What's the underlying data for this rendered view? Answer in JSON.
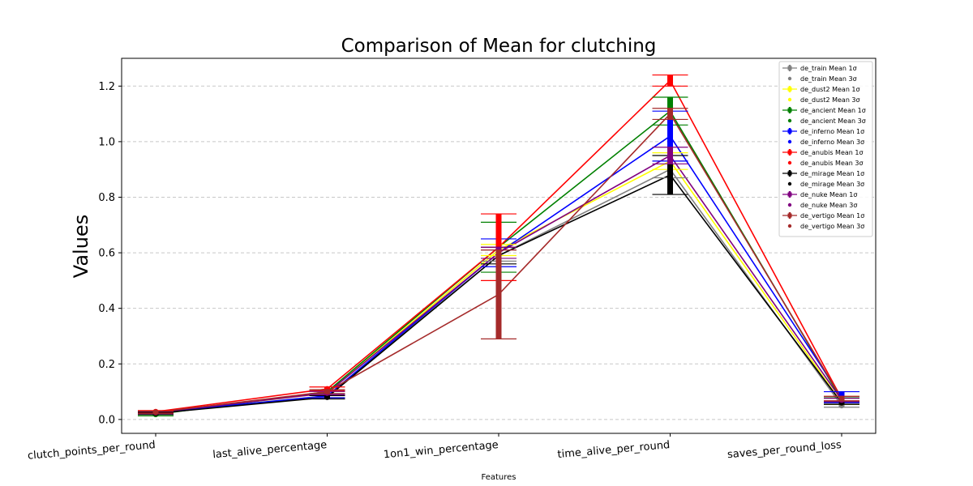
{
  "chart_data": {
    "type": "line",
    "title": "Comparison of Mean for clutching",
    "xlabel": "Features",
    "ylabel": "Values",
    "categories": [
      "clutch_points_per_round",
      "last_alive_percentage",
      "1on1_win_percentage",
      "time_alive_per_round",
      "saves_per_round_loss"
    ],
    "ylim": [
      -0.05,
      1.3
    ],
    "yticks": [
      0.0,
      0.2,
      0.4,
      0.6,
      0.8,
      1.0,
      1.2
    ],
    "grid": "y-dashed",
    "legend_position": "top-right",
    "series": [
      {
        "name": "de_train",
        "color": "#808080",
        "values": [
          0.022,
          0.085,
          0.59,
          0.9,
          0.05
        ],
        "err1": [
          0.004,
          0.006,
          0.02,
          0.03,
          0.006
        ]
      },
      {
        "name": "de_dust2",
        "color": "#ffff00",
        "values": [
          0.023,
          0.095,
          0.61,
          0.93,
          0.06
        ],
        "err1": [
          0.004,
          0.006,
          0.02,
          0.03,
          0.006
        ]
      },
      {
        "name": "de_ancient",
        "color": "#008000",
        "values": [
          0.018,
          0.1,
          0.62,
          1.11,
          0.07
        ],
        "err1": [
          0.005,
          0.007,
          0.09,
          0.05,
          0.008
        ]
      },
      {
        "name": "de_inferno",
        "color": "#0000ff",
        "values": [
          0.025,
          0.085,
          0.6,
          1.02,
          0.08
        ],
        "err1": [
          0.004,
          0.007,
          0.05,
          0.09,
          0.02
        ]
      },
      {
        "name": "de_anubis",
        "color": "#ff0000",
        "values": [
          0.028,
          0.11,
          0.62,
          1.22,
          0.075
        ],
        "err1": [
          0.004,
          0.007,
          0.12,
          0.02,
          0.008
        ]
      },
      {
        "name": "de_mirage",
        "color": "#000000",
        "values": [
          0.022,
          0.08,
          0.59,
          0.88,
          0.06
        ],
        "err1": [
          0.004,
          0.006,
          0.03,
          0.07,
          0.006
        ]
      },
      {
        "name": "de_nuke",
        "color": "#800080",
        "values": [
          0.025,
          0.095,
          0.6,
          0.95,
          0.07
        ],
        "err1": [
          0.004,
          0.006,
          0.02,
          0.03,
          0.006
        ]
      },
      {
        "name": "de_vertigo",
        "color": "#a52a2a",
        "values": [
          0.026,
          0.1,
          0.45,
          1.1,
          0.075
        ],
        "err1": [
          0.004,
          0.007,
          0.16,
          0.02,
          0.008
        ]
      }
    ],
    "legend_suffix_1sigma": "Mean 1σ",
    "legend_suffix_3sigma": "Mean 3σ"
  }
}
